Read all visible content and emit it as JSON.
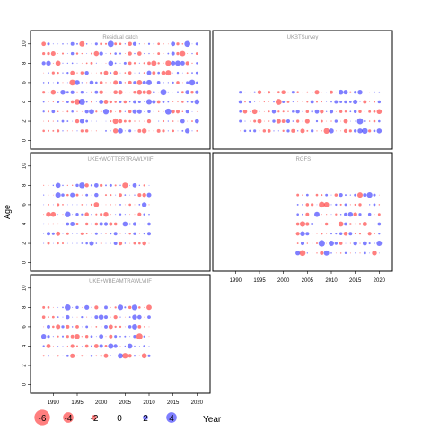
{
  "chart_data": {
    "type": "scatter",
    "subtype": "bubble-residual-grid",
    "ylabel": "Age",
    "xlabel": "Year",
    "xlim": [
      1986,
      2022
    ],
    "ylim": [
      -0.5,
      11
    ],
    "x_ticks": [
      1990,
      1995,
      2000,
      2005,
      2010,
      2015,
      2020
    ],
    "y_ticks": [
      0,
      2,
      4,
      6,
      8,
      10
    ],
    "colors": {
      "positive": "#0000ff",
      "negative": "#ff0000",
      "opacity": 0.5
    },
    "panels": [
      {
        "title": "Residual catch",
        "years": [
          1988,
          2020
        ],
        "ages": [
          1,
          10
        ]
      },
      {
        "title": "UKBTSurvey",
        "years": [
          1991,
          2020
        ],
        "ages": [
          1,
          5
        ]
      },
      {
        "title": "UKE+WOTTERTRAWLVIIF",
        "years": [
          1988,
          2010
        ],
        "ages": [
          2,
          8
        ]
      },
      {
        "title": "IRGFS",
        "years": [
          2003,
          2020
        ],
        "ages": [
          1,
          7
        ]
      },
      {
        "title": "UKE+WBEAMTRAWLVIIF",
        "years": [
          1988,
          2010
        ],
        "ages": [
          3,
          8
        ]
      }
    ],
    "legend": {
      "values": [
        -6,
        -4,
        -2,
        0,
        2,
        4
      ],
      "labels": [
        "-6",
        "-4",
        "-2",
        "0",
        "2",
        "4"
      ]
    }
  }
}
